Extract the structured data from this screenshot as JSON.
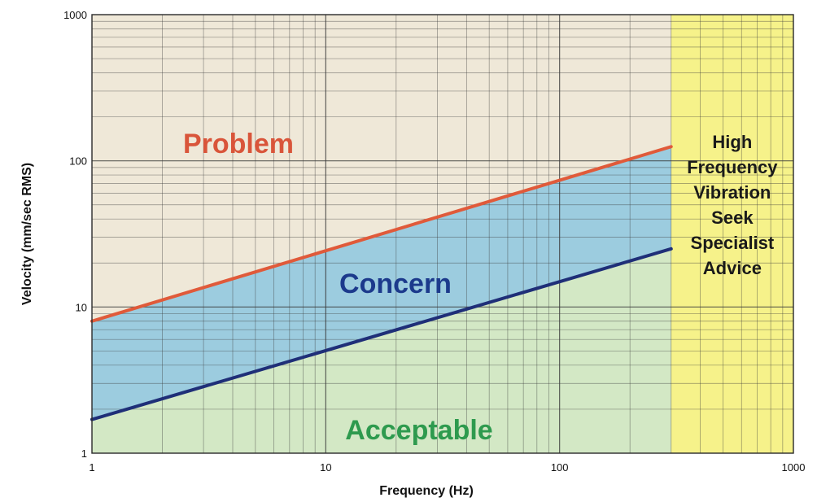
{
  "chart_data": {
    "type": "line",
    "xlabel": "Frequency (Hz)",
    "ylabel": "Velocity (mm/sec RMS)",
    "x_scale": "log",
    "y_scale": "log",
    "xlim": [
      1,
      1000
    ],
    "ylim": [
      1,
      1000
    ],
    "x_ticks": [
      "1",
      "10",
      "100",
      "1000"
    ],
    "y_ticks": [
      "1",
      "10",
      "100",
      "1000"
    ],
    "grid": true,
    "series": [
      {
        "x": [
          1,
          300
        ],
        "y": [
          8,
          125
        ],
        "color": "#e05a3a"
      },
      {
        "x": [
          1,
          300
        ],
        "y": [
          1.7,
          25
        ],
        "color": "#1f2f78"
      }
    ],
    "high_frequency_start": 300,
    "regions": {
      "problem": {
        "label": "Problem",
        "color": "#d9553a",
        "fill": "#efe8d8"
      },
      "concern": {
        "label": "Concern",
        "color": "#1c3a8c",
        "fill": "#9cccdf"
      },
      "acceptable": {
        "label": "Acceptable",
        "color": "#2e9a4e",
        "fill": "#d3e8c5"
      },
      "high_frequency": {
        "lines": [
          "High",
          "Frequency",
          "Vibration",
          "Seek",
          "Specialist",
          "Advice"
        ],
        "color": "#1a1a1a",
        "fill": "#f6f28a"
      }
    }
  }
}
